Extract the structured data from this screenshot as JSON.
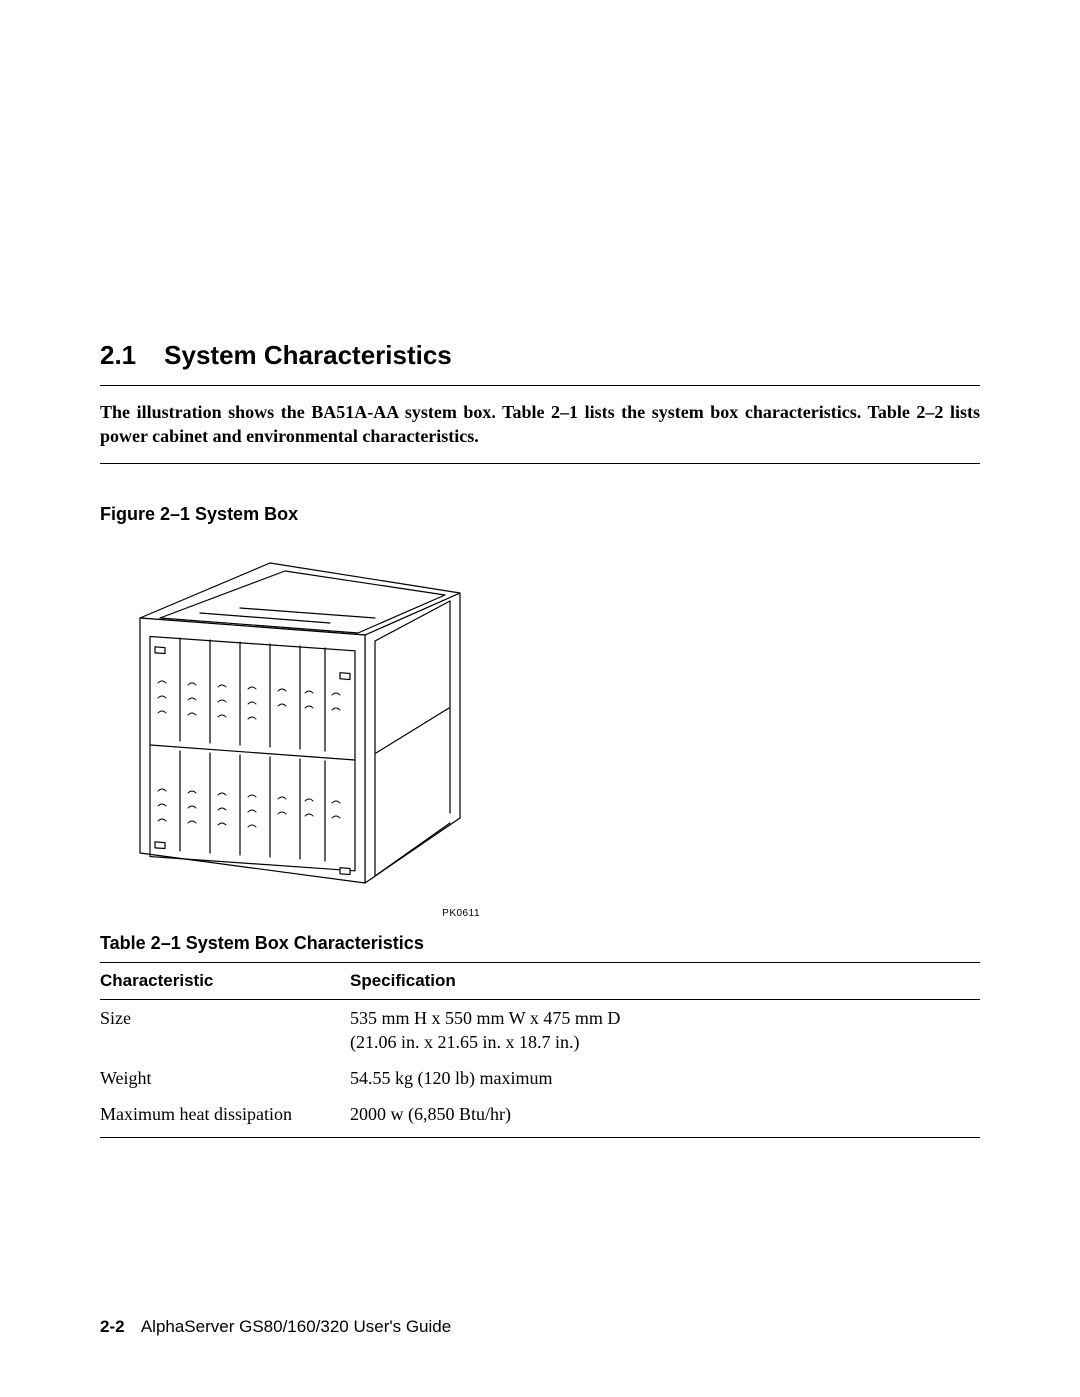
{
  "section": {
    "number": "2.1",
    "title": "System Characteristics"
  },
  "intro_text": "The illustration shows the BA51A-AA system box. Table 2–1 lists the system box characteristics. Table 2–2 lists power cabinet and environmental characteristics.",
  "figure": {
    "caption": "Figure 2–1  System Box",
    "code": "PK0611",
    "stroke_color": "#000000",
    "fill_color": "#ffffff"
  },
  "table": {
    "caption": "Table 2–1 System Box Characteristics",
    "headers": [
      "Characteristic",
      "Specification"
    ],
    "rows": [
      {
        "c": "Size",
        "s": "535 mm H x 550 mm W x 475 mm D\n(21.06 in. x 21.65 in. x 18.7 in.)"
      },
      {
        "c": "Weight",
        "s": "54.55 kg (120 lb) maximum"
      },
      {
        "c": "Maximum heat dissipation",
        "s": "2000 w (6,850 Btu/hr)"
      }
    ]
  },
  "footer": {
    "page": "2-2",
    "doc": "AlphaServer GS80/160/320 User's Guide"
  }
}
